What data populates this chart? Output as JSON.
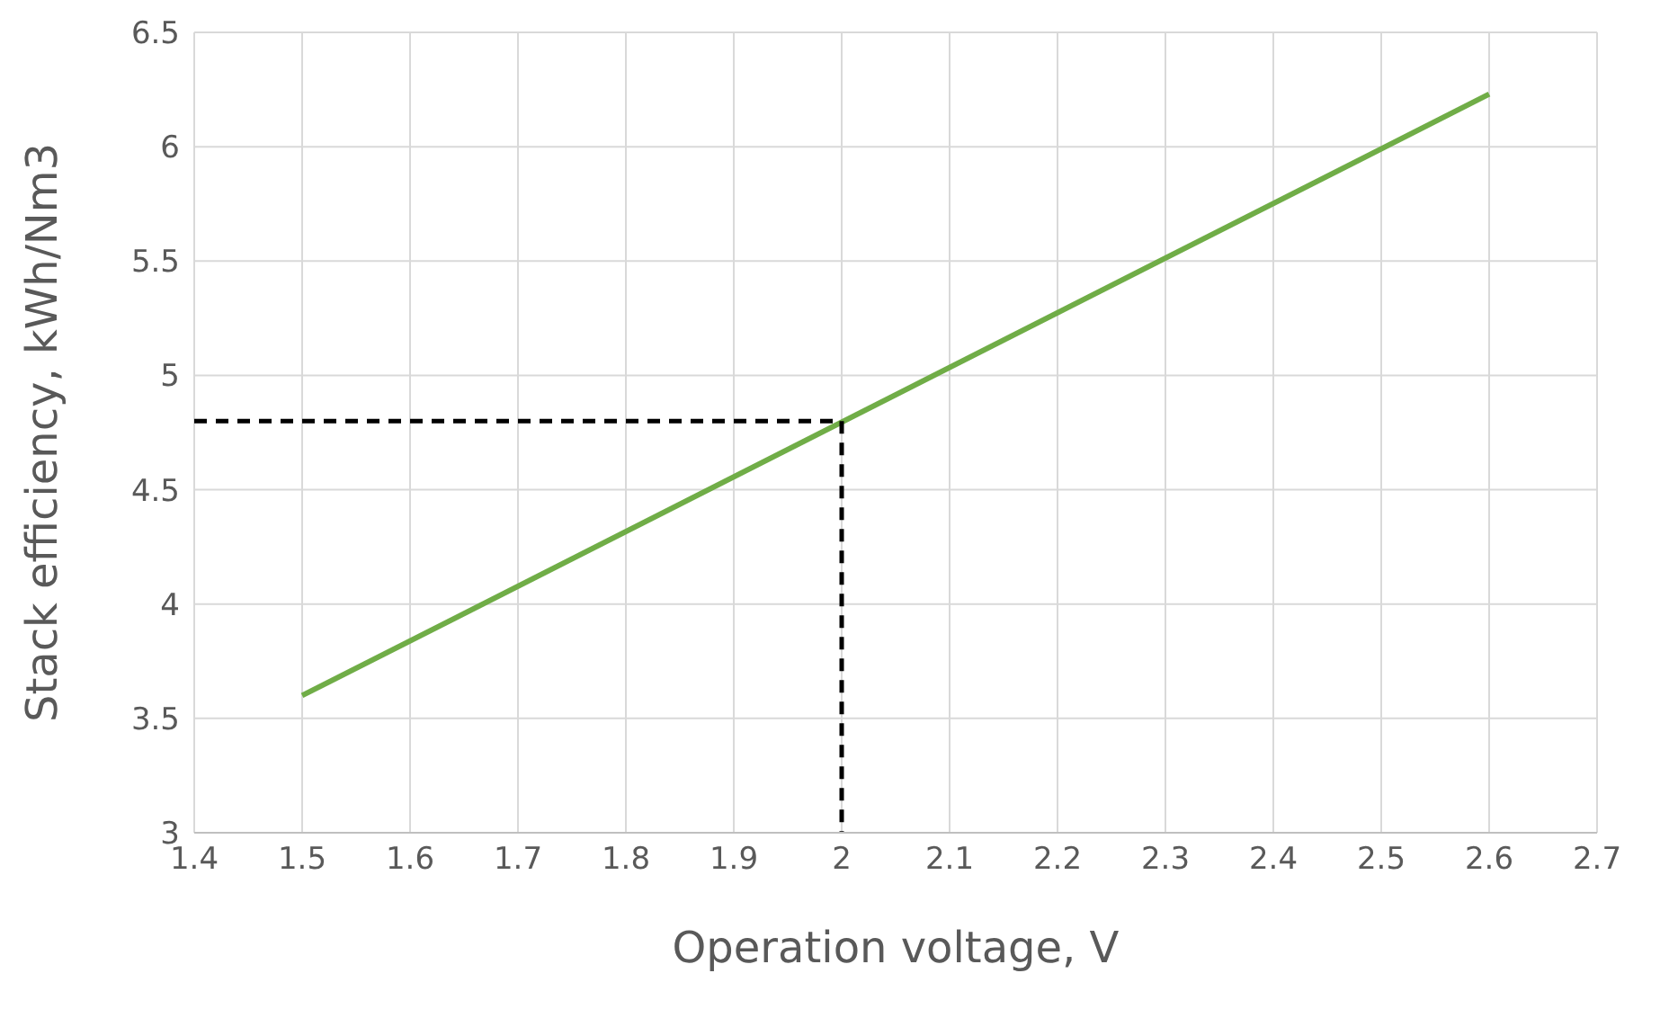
{
  "chart_data": {
    "type": "line",
    "xlabel": "Operation voltage, V",
    "ylabel": "Stack efficiency, kWh/Nm3",
    "series": [
      {
        "color": "#70ad47",
        "x": [
          1.5,
          2.6
        ],
        "values": [
          3.6,
          6.23
        ]
      },
      {
        "type": "line",
        "color": "#000000",
        "line_style": "dashed",
        "x": [
          1.4,
          2,
          2
        ],
        "values": [
          4.8,
          4.8,
          3
        ]
      }
    ],
    "xlim": [
      1.4,
      2.7
    ],
    "xticks": [
      1.4,
      1.5,
      1.6,
      1.7,
      1.8,
      1.9,
      2,
      2.1,
      2.2,
      2.3,
      2.4,
      2.5,
      2.6,
      2.7
    ],
    "ylim": [
      3,
      6.5
    ],
    "yticks": [
      3,
      3.5,
      4,
      4.5,
      5,
      5.5,
      6,
      6.5
    ],
    "grid": true,
    "marker": "none",
    "line_style": "solid"
  }
}
